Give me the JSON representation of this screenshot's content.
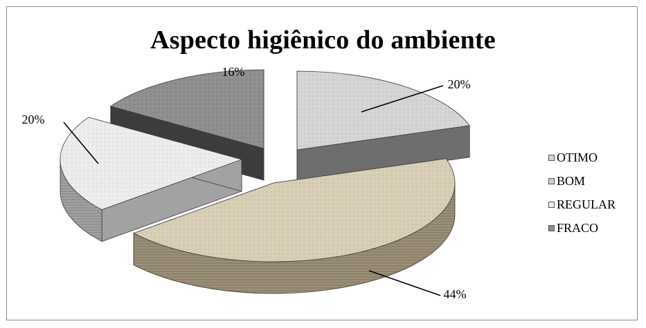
{
  "chart_data": {
    "type": "pie",
    "title": "Aspecto higiênico do ambiente",
    "categories": [
      "OTIMO",
      "BOM",
      "REGULAR",
      "FRACO"
    ],
    "values": [
      20,
      44,
      20,
      16
    ],
    "value_labels": [
      "20%",
      "44%",
      "20%",
      "16%"
    ],
    "legend_position": "right",
    "colors": [
      "#d4d4d4",
      "#d8ceb6",
      "#ececec",
      "#8e8e8e"
    ],
    "side_colors": [
      "#6e6e6e",
      "#9c9079",
      "#a2a2a2",
      "#3c3c3c"
    ],
    "exploded": true,
    "three_d": true
  }
}
